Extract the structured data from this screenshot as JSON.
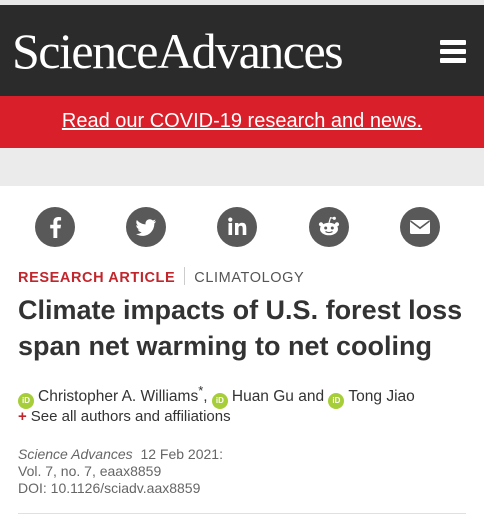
{
  "header": {
    "logo_text": "ScienceAdvances",
    "menu_icon": "hamburger-menu-icon",
    "background_color": "#2b2b2b"
  },
  "covid_banner": {
    "link_text": "Read our COVID-19 research and news.",
    "background_color": "#d9202a"
  },
  "share_icons": [
    "facebook-icon",
    "twitter-icon",
    "linkedin-icon",
    "reddit-icon",
    "email-icon"
  ],
  "article": {
    "type": "RESEARCH ARTICLE",
    "subject": "CLIMATOLOGY",
    "title": "Climate impacts of U.S. forest loss span net warming to net cooling",
    "authors": [
      {
        "name": "Christopher A. Williams",
        "mark": "*",
        "after": ", "
      },
      {
        "name": "Huan Gu",
        "mark": "",
        "after": " and "
      },
      {
        "name": "Tong Jiao",
        "mark": "",
        "after": ""
      }
    ],
    "orcid_badge": "iD",
    "see_all_label": "See all authors and affiliations",
    "see_all_prefix": "+",
    "journal": "Science Advances",
    "date": "12 Feb 2021:",
    "volume_line": "Vol. 7, no. 7, eaax8859",
    "doi_line": "DOI: 10.1126/sciadv.aax8859"
  }
}
